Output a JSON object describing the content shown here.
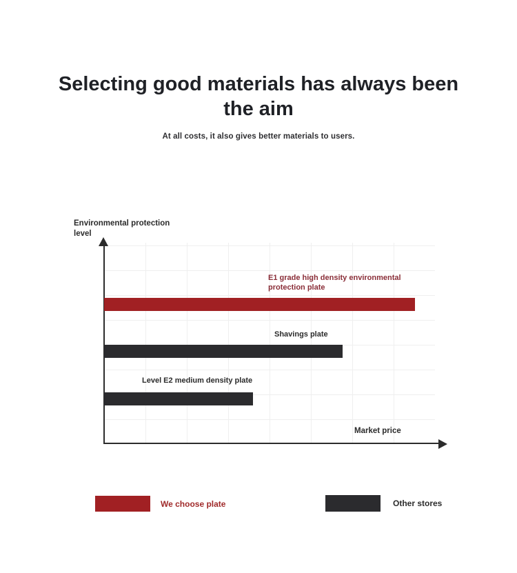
{
  "chart_data": {
    "type": "bar",
    "orientation": "horizontal",
    "title": "Selecting good materials has always been the aim",
    "subtitle": "At all costs, it also gives better materials to users.",
    "xlabel": "Market price",
    "ylabel": "Environmental protection level",
    "categories": [
      "E1 grade high density environmental protection plate",
      "Shavings plate",
      "Level E2 medium density plate"
    ],
    "values": [
      94,
      72,
      45
    ],
    "values_note": "relative bar length as % of x-axis span; axes have no numeric tick labels",
    "xlim": [
      0,
      100
    ],
    "grid": true,
    "bar_colors": [
      "#a12023",
      "#2b2b2e",
      "#2b2b2e"
    ],
    "category_label_colors": [
      "#8a2e38",
      "#2b2b2b",
      "#2b2b2b"
    ],
    "legend_position": "bottom",
    "legend": [
      {
        "label": "We choose plate",
        "color": "#a12023",
        "text_color": "#a02a2a"
      },
      {
        "label": "Other stores",
        "color": "#2b2b2e",
        "text_color": "#2b2b2b"
      }
    ]
  },
  "colors": {
    "background": "#ffffff",
    "heading_text": "#1f2126",
    "axis": "#2b2b2b",
    "gridline": "#efefef"
  }
}
